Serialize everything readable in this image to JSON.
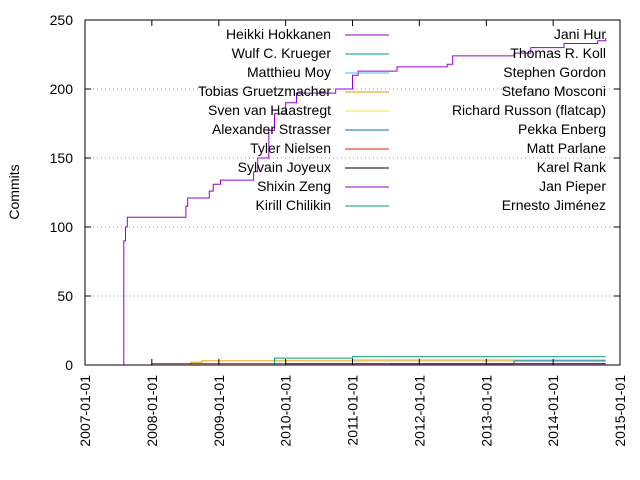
{
  "chart_data": {
    "type": "line",
    "title": "",
    "xlabel": "",
    "ylabel": "Commits",
    "ylim": [
      0,
      250
    ],
    "xlim": [
      "2007-01-01",
      "2015-01-01"
    ],
    "yticks": [
      "0",
      "50",
      "100",
      "150",
      "200",
      "250"
    ],
    "xticks": [
      "2007-01-01",
      "2008-01-01",
      "2009-01-01",
      "2010-01-01",
      "2011-01-01",
      "2012-01-01",
      "2013-01-01",
      "2014-01-01",
      "2015-01-01"
    ],
    "grid": "horizontal dotted",
    "legend_placement": "top, two columns inside plot",
    "series": [
      {
        "name": "Heikki Hokkanen",
        "color": "#9400d3",
        "points": [
          [
            "2007-07-01",
            0
          ],
          [
            "2007-08-01",
            90
          ],
          [
            "2007-08-10",
            100
          ],
          [
            "2007-08-20",
            107
          ],
          [
            "2008-07-01",
            107
          ],
          [
            "2008-07-05",
            115
          ],
          [
            "2008-07-15",
            121
          ],
          [
            "2008-11-01",
            121
          ],
          [
            "2008-11-10",
            126
          ],
          [
            "2008-12-01",
            131
          ],
          [
            "2009-01-10",
            134
          ],
          [
            "2009-07-01",
            134
          ],
          [
            "2009-07-10",
            140
          ],
          [
            "2009-08-01",
            150
          ],
          [
            "2009-10-01",
            170
          ],
          [
            "2009-11-01",
            182
          ],
          [
            "2010-01-01",
            190
          ],
          [
            "2010-03-01",
            197
          ],
          [
            "2010-10-01",
            200
          ],
          [
            "2011-01-01",
            210
          ],
          [
            "2011-02-01",
            213
          ],
          [
            "2011-09-01",
            216
          ],
          [
            "2012-06-01",
            218
          ],
          [
            "2012-07-01",
            224
          ],
          [
            "2013-06-01",
            226
          ],
          [
            "2013-09-01",
            230
          ],
          [
            "2014-03-01",
            233
          ],
          [
            "2014-09-01",
            235
          ],
          [
            "2014-10-15",
            237
          ]
        ]
      },
      {
        "name": "Wulf C. Krueger",
        "color": "#009e73",
        "points": [
          [
            "2007-01-01",
            0
          ]
        ]
      },
      {
        "name": "Matthieu Moy",
        "color": "#56b4e9",
        "points": [
          [
            "2007-01-01",
            0
          ]
        ]
      },
      {
        "name": "Tobias Gruetzmacher",
        "color": "#e69f00",
        "points": [
          [
            "2007-01-01",
            0
          ],
          [
            "2008-08-01",
            2
          ],
          [
            "2008-10-01",
            3
          ],
          [
            "2009-01-01",
            3
          ],
          [
            "2014-10-15",
            3
          ]
        ]
      },
      {
        "name": "Sven van Haastregt",
        "color": "#f0e442",
        "points": [
          [
            "2010-06-01",
            0
          ],
          [
            "2011-01-01",
            4
          ],
          [
            "2013-01-01",
            4
          ],
          [
            "2014-10-15",
            4
          ]
        ]
      },
      {
        "name": "Alexander Strasser",
        "color": "#0072b2",
        "points": [
          [
            "2007-01-01",
            0
          ],
          [
            "2011-08-01",
            1
          ],
          [
            "2013-06-01",
            3
          ],
          [
            "2014-10-15",
            3
          ]
        ]
      },
      {
        "name": "Tyler Nielsen",
        "color": "#e51e10",
        "points": [
          [
            "2007-01-01",
            0
          ],
          [
            "2008-01-01",
            1
          ],
          [
            "2014-10-15",
            1
          ]
        ]
      },
      {
        "name": "Sylvain Joyeux",
        "color": "#000000",
        "points": [
          [
            "2007-01-01",
            0
          ],
          [
            "2014-10-15",
            0
          ]
        ]
      },
      {
        "name": "Shixin Zeng",
        "color": "#9400d3",
        "points": [
          [
            "2007-01-01",
            0
          ],
          [
            "2010-01-01",
            1
          ],
          [
            "2014-10-15",
            1
          ]
        ]
      },
      {
        "name": "Kirill Chilikin",
        "color": "#009e73",
        "points": [
          [
            "2007-01-01",
            0
          ],
          [
            "2009-11-01",
            5
          ],
          [
            "2010-06-01",
            5
          ],
          [
            "2011-01-01",
            6
          ],
          [
            "2014-10-15",
            6
          ]
        ]
      },
      {
        "name": "Jani Hur",
        "color": "#56b4e9",
        "points": [
          [
            "2007-01-01",
            0
          ]
        ]
      },
      {
        "name": "Thomas R. Koll",
        "color": "#e69f00",
        "points": [
          [
            "2007-01-01",
            0
          ]
        ]
      },
      {
        "name": "Stephen Gordon",
        "color": "#f0e442",
        "points": [
          [
            "2007-01-01",
            0
          ]
        ]
      },
      {
        "name": "Stefano Mosconi",
        "color": "#0072b2",
        "points": [
          [
            "2007-01-01",
            0
          ]
        ]
      },
      {
        "name": "Richard Russon (flatcap)",
        "color": "#e51e10",
        "points": [
          [
            "2007-01-01",
            0
          ]
        ]
      },
      {
        "name": "Pekka Enberg",
        "color": "#000000",
        "points": [
          [
            "2007-01-01",
            0
          ]
        ]
      },
      {
        "name": "Matt Parlane",
        "color": "#9400d3",
        "points": [
          [
            "2007-01-01",
            0
          ]
        ]
      },
      {
        "name": "Karel Rank",
        "color": "#009e73",
        "points": [
          [
            "2007-01-01",
            0
          ]
        ]
      },
      {
        "name": "Jan Pieper",
        "color": "#56b4e9",
        "points": [
          [
            "2007-01-01",
            0
          ]
        ]
      },
      {
        "name": "Ernesto Jiménez",
        "color": "#e69f00",
        "points": [
          [
            "2007-01-01",
            0
          ]
        ]
      }
    ]
  }
}
